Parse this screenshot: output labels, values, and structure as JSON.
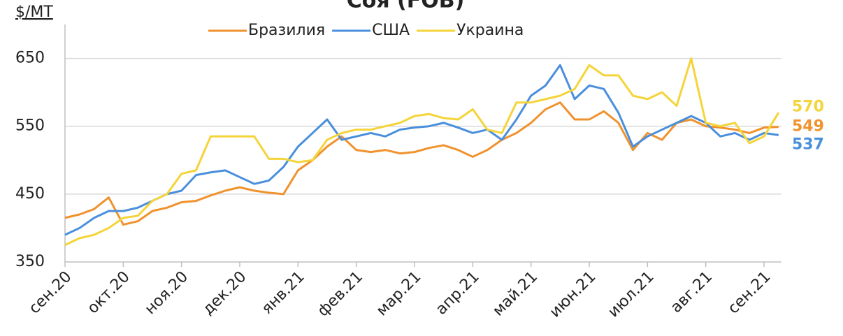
{
  "chart_data": {
    "type": "line",
    "title": "Соя (FOB)",
    "y_axis_label": "$/МТ",
    "categories": [
      "сен.20",
      null,
      null,
      null,
      "окт.20",
      null,
      null,
      null,
      "ноя.20",
      null,
      null,
      null,
      "дек.20",
      null,
      null,
      null,
      "янв.21",
      null,
      null,
      null,
      "фев.21",
      null,
      null,
      null,
      "мар.21",
      null,
      null,
      null,
      "апр.21",
      null,
      null,
      null,
      "май.21",
      null,
      null,
      null,
      "июн.21",
      null,
      null,
      null,
      "июл.21",
      null,
      null,
      null,
      "авг.21",
      null,
      null,
      null,
      "сен.21",
      null
    ],
    "series": [
      {
        "name": "Бразилия",
        "color": "#f0922e",
        "values": [
          415,
          420,
          428,
          445,
          405,
          410,
          425,
          430,
          438,
          440,
          448,
          455,
          460,
          455,
          452,
          450,
          485,
          500,
          520,
          535,
          515,
          512,
          515,
          510,
          512,
          518,
          522,
          515,
          505,
          515,
          530,
          540,
          555,
          575,
          585,
          560,
          560,
          572,
          555,
          515,
          540,
          530,
          555,
          560,
          550,
          548,
          545,
          540,
          548,
          549
        ]
      },
      {
        "name": "США",
        "color": "#4a8fdc",
        "values": [
          390,
          400,
          415,
          425,
          425,
          430,
          440,
          450,
          455,
          478,
          482,
          485,
          475,
          465,
          470,
          490,
          520,
          540,
          560,
          530,
          535,
          540,
          535,
          545,
          548,
          550,
          555,
          548,
          540,
          545,
          530,
          560,
          595,
          610,
          640,
          590,
          610,
          605,
          570,
          520,
          535,
          545,
          555,
          565,
          555,
          535,
          540,
          530,
          540,
          537
        ]
      },
      {
        "name": "Украина",
        "color": "#f5d43a",
        "values": [
          375,
          385,
          390,
          400,
          415,
          418,
          440,
          450,
          480,
          485,
          535,
          535,
          535,
          535,
          502,
          502,
          497,
          500,
          530,
          540,
          545,
          545,
          550,
          555,
          565,
          568,
          562,
          560,
          575,
          545,
          540,
          585,
          585,
          590,
          595,
          605,
          640,
          625,
          625,
          595,
          590,
          600,
          580,
          650,
          555,
          550,
          555,
          525,
          535,
          570
        ]
      }
    ],
    "ylim": [
      350,
      700
    ],
    "yticks": [
      350,
      450,
      550,
      650
    ],
    "grid": true,
    "legend": "top"
  }
}
